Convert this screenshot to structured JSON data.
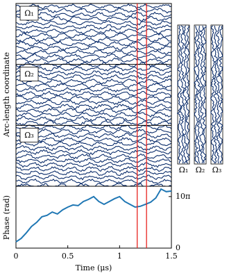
{
  "chart_data": {
    "type": "line",
    "xlabel": "Time (μs)",
    "ylabel": "Phase (rad)",
    "waterfall_ylabel": "Arc-length coordinate",
    "regions": [
      "Ω₁",
      "Ω₂",
      "Ω₃"
    ],
    "x": [
      0,
      0.05,
      0.1,
      0.15,
      0.2,
      0.25,
      0.3,
      0.35,
      0.4,
      0.45,
      0.5,
      0.55,
      0.6,
      0.65,
      0.7,
      0.75,
      0.8,
      0.85,
      0.9,
      0.95,
      1.0,
      1.05,
      1.1,
      1.15,
      1.2,
      1.25,
      1.3,
      1.35,
      1.4,
      1.45,
      1.5
    ],
    "series": [
      {
        "color": "#1f77b4",
        "values": [
          3.8,
          5.9,
          9.3,
          13.2,
          15.7,
          19.1,
          20,
          22,
          20.8,
          23.3,
          25,
          26.3,
          25.9,
          28.4,
          29.7,
          31.4,
          28.4,
          26.7,
          28.4,
          30.1,
          31.4,
          28.4,
          26.7,
          25,
          25.5,
          26.7,
          28,
          30.6,
          36,
          34.4,
          34.8
        ]
      }
    ],
    "xlim": [
      0,
      1.5
    ],
    "xticks": [
      0,
      0.5,
      {
        "value": 1,
        "label": "1"
      },
      1.5
    ],
    "ylim": [
      0,
      37.7
    ],
    "yticks": [
      0,
      {
        "value": 31.4159,
        "label": "10π"
      }
    ],
    "markers": {
      "x": [
        1.17,
        1.26
      ],
      "color": "#e8231f"
    },
    "trace_color": "#0b2d6b"
  }
}
